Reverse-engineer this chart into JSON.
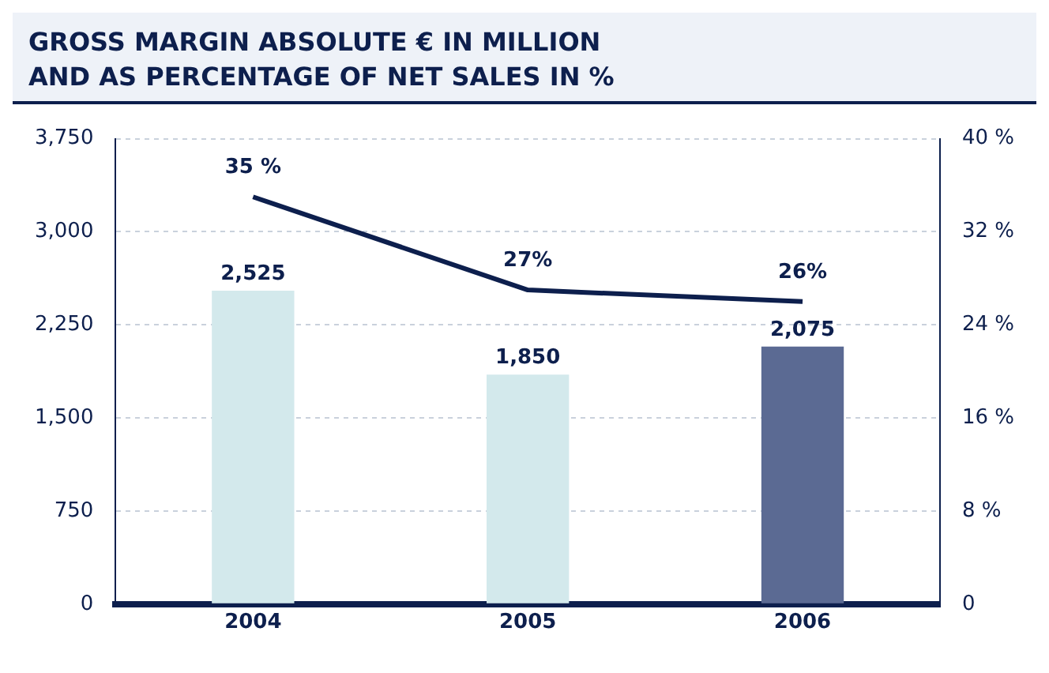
{
  "chart_data": {
    "type": "bar",
    "title": "GROSS MARGIN ABSOLUTE € IN MILLION",
    "subtitle": "AND AS PERCENTAGE OF NET SALES IN %",
    "categories": [
      "2004",
      "2005",
      "2006"
    ],
    "series": [
      {
        "colors": [
          "#d3e9ec",
          "#d3e9ec",
          "#5b6a93"
        ],
        "values": [
          2525,
          1850,
          2075
        ],
        "value_labels": [
          "2,525",
          "1,850",
          "2,075"
        ]
      },
      {
        "type": "line",
        "axis": "y2",
        "color": "#0d1f4d",
        "values": [
          35,
          27,
          26
        ],
        "value_labels": [
          "35 %",
          "27%",
          "26%"
        ],
        "marker": "none"
      }
    ],
    "ylim": [
      0,
      3750
    ],
    "yticks": [
      0,
      {
        "value": 750,
        "label": "750"
      },
      {
        "value": 1500,
        "label": "1,500"
      },
      {
        "value": 2250,
        "label": "2,250"
      },
      {
        "value": 3000,
        "label": "3,000"
      },
      {
        "value": 3750,
        "label": "3,750"
      }
    ],
    "y2lim": [
      0,
      40
    ],
    "y2ticks": [
      0,
      {
        "value": 8,
        "label": "8 %"
      },
      {
        "value": 16,
        "label": "16 %"
      },
      {
        "value": 24,
        "label": "24 %"
      },
      {
        "value": 32,
        "label": "32 %"
      },
      {
        "value": 40,
        "label": "40 %"
      }
    ],
    "grid": "y",
    "legend": false
  }
}
